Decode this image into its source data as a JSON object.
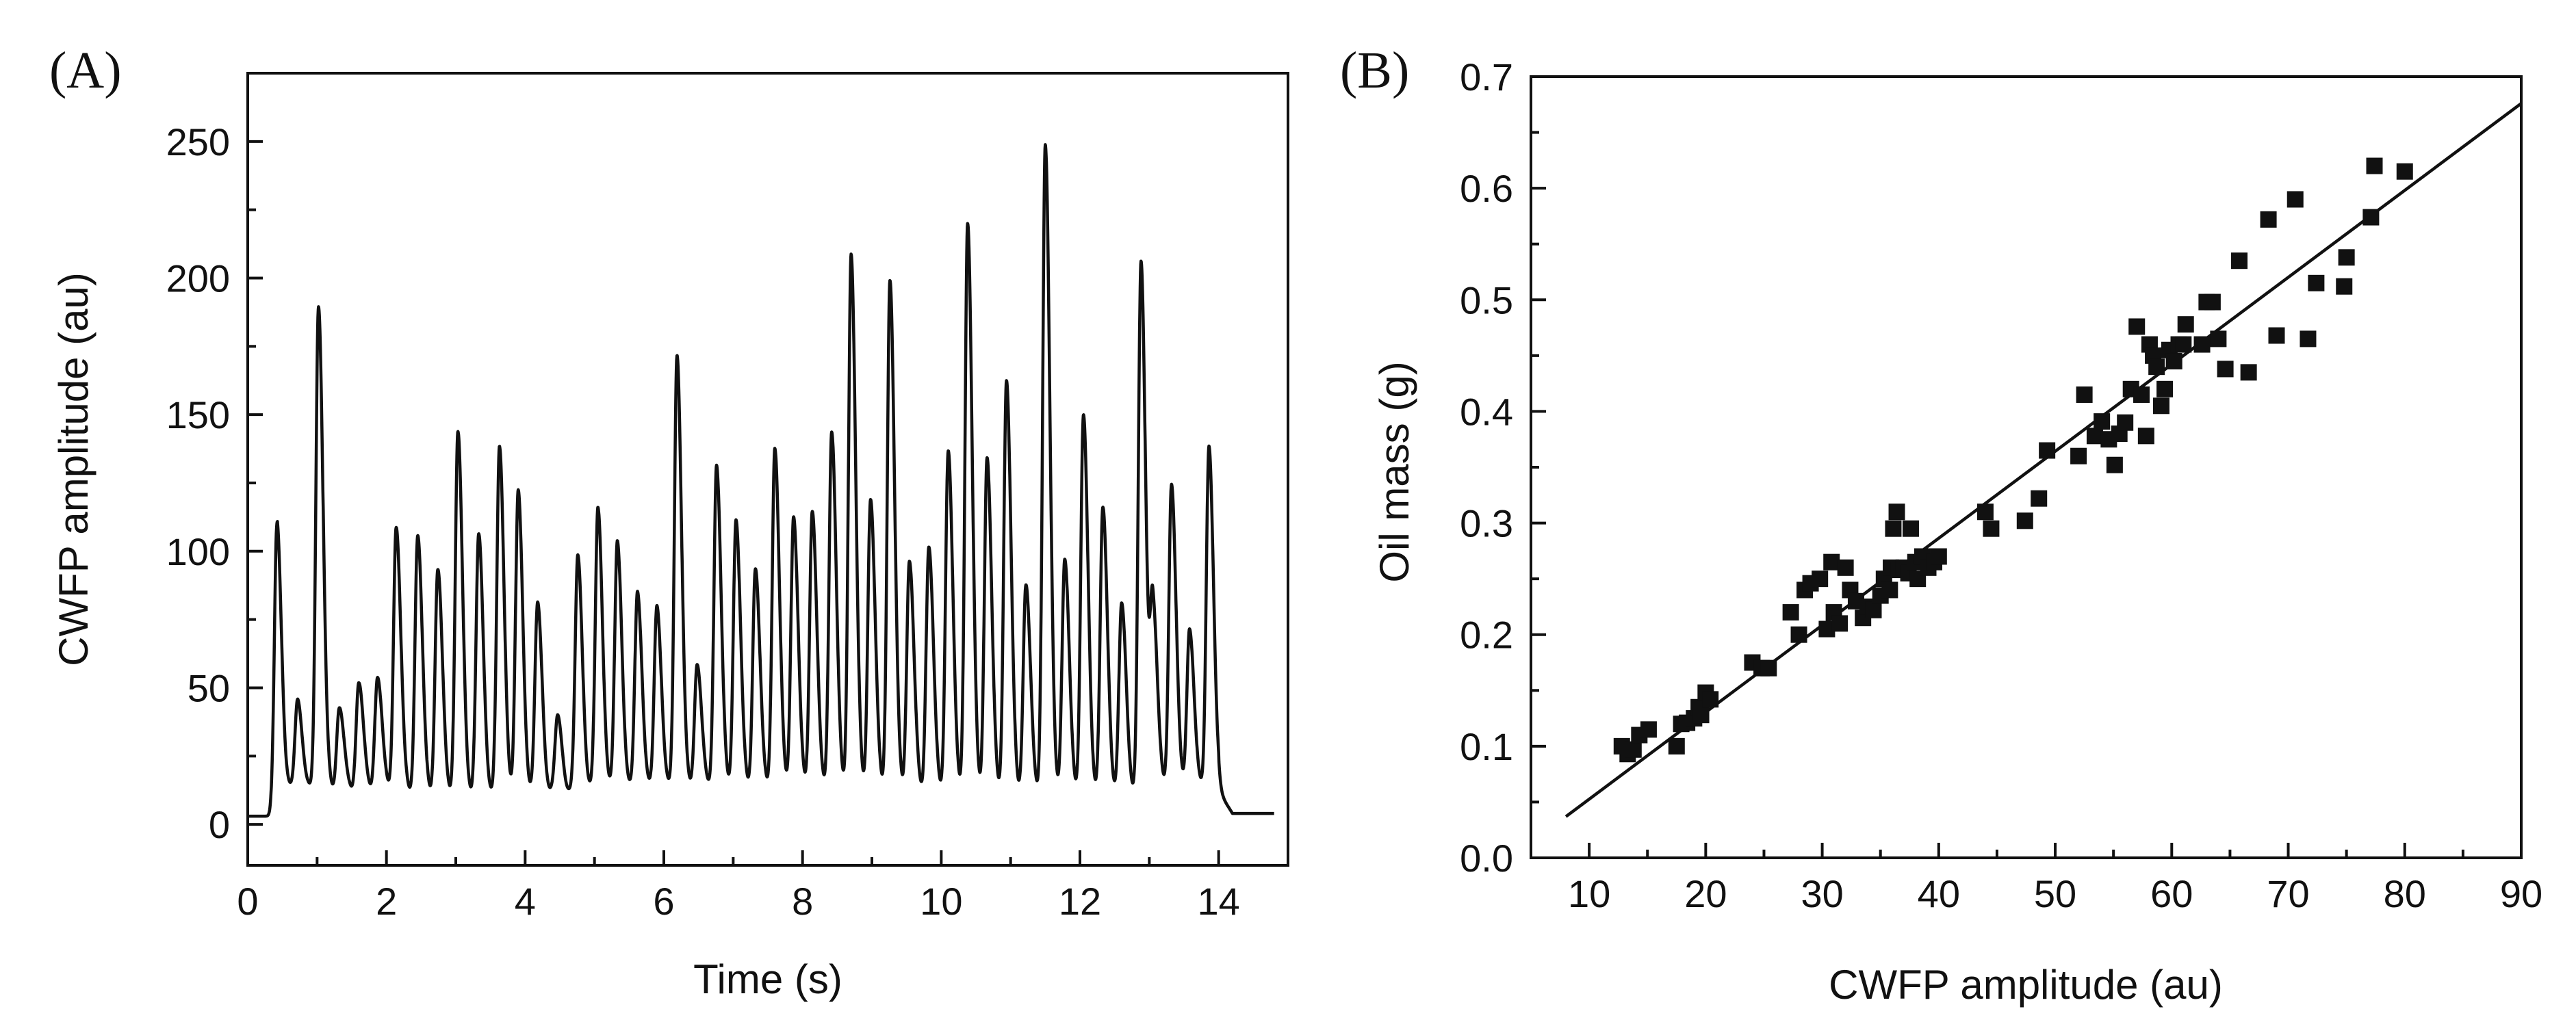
{
  "chart_data": [
    {
      "type": "line",
      "panel_label": "(A)",
      "title": "",
      "xlabel": "Time (s)",
      "ylabel": "CWFP amplitude (au)",
      "xlim": [
        0,
        15
      ],
      "ylim": [
        -15,
        275
      ],
      "xticks": [
        0,
        2,
        4,
        6,
        8,
        10,
        12,
        14
      ],
      "yticks": [
        0,
        50,
        100,
        150,
        200,
        250
      ],
      "baseline_start": 3,
      "baseline_middle": 12,
      "baseline_end": 4,
      "signal_start": 0.38,
      "signal_end": 14.0,
      "peaks": [
        {
          "t": 0.42,
          "a": 112
        },
        {
          "t": 0.72,
          "a": 47
        },
        {
          "t": 1.02,
          "a": 191
        },
        {
          "t": 1.32,
          "a": 44
        },
        {
          "t": 1.6,
          "a": 53
        },
        {
          "t": 1.87,
          "a": 55
        },
        {
          "t": 2.14,
          "a": 110
        },
        {
          "t": 2.45,
          "a": 106
        },
        {
          "t": 2.74,
          "a": 93
        },
        {
          "t": 3.03,
          "a": 143
        },
        {
          "t": 3.33,
          "a": 105
        },
        {
          "t": 3.63,
          "a": 137
        },
        {
          "t": 3.9,
          "a": 121
        },
        {
          "t": 4.18,
          "a": 80
        },
        {
          "t": 4.47,
          "a": 39
        },
        {
          "t": 4.76,
          "a": 98
        },
        {
          "t": 5.05,
          "a": 116
        },
        {
          "t": 5.33,
          "a": 104
        },
        {
          "t": 5.62,
          "a": 86
        },
        {
          "t": 5.9,
          "a": 81
        },
        {
          "t": 6.19,
          "a": 173
        },
        {
          "t": 6.48,
          "a": 60
        },
        {
          "t": 6.76,
          "a": 133
        },
        {
          "t": 7.04,
          "a": 113
        },
        {
          "t": 7.32,
          "a": 95
        },
        {
          "t": 7.6,
          "a": 139
        },
        {
          "t": 7.87,
          "a": 114
        },
        {
          "t": 8.14,
          "a": 116
        },
        {
          "t": 8.42,
          "a": 145
        },
        {
          "t": 8.7,
          "a": 210
        },
        {
          "t": 8.98,
          "a": 120
        },
        {
          "t": 9.26,
          "a": 200
        },
        {
          "t": 9.54,
          "a": 97
        },
        {
          "t": 9.82,
          "a": 102
        },
        {
          "t": 10.1,
          "a": 137
        },
        {
          "t": 10.38,
          "a": 220
        },
        {
          "t": 10.66,
          "a": 134
        },
        {
          "t": 10.94,
          "a": 162
        },
        {
          "t": 11.22,
          "a": 87
        },
        {
          "t": 11.5,
          "a": 248
        },
        {
          "t": 11.78,
          "a": 96
        },
        {
          "t": 12.05,
          "a": 149
        },
        {
          "t": 12.33,
          "a": 115
        },
        {
          "t": 12.6,
          "a": 80
        },
        {
          "t": 12.88,
          "a": 205
        },
        {
          "t": 13.05,
          "a": 82
        },
        {
          "t": 13.32,
          "a": 126
        },
        {
          "t": 13.58,
          "a": 73
        },
        {
          "t": 13.86,
          "a": 140
        }
      ]
    },
    {
      "type": "scatter",
      "panel_label": "(B)",
      "title": "",
      "xlabel": "CWFP amplitude (au)",
      "ylabel": "Oil mass (g)",
      "xlim": [
        5,
        90
      ],
      "ylim": [
        0,
        0.7
      ],
      "xticks": [
        10,
        20,
        30,
        40,
        50,
        60,
        70,
        80,
        90
      ],
      "yticks": [
        "0.0",
        "0.1",
        "0.2",
        "0.3",
        "0.4",
        "0.5",
        "0.6",
        "0.7"
      ],
      "fit_line": {
        "x": [
          8,
          90
        ],
        "y": [
          0.037,
          0.676
        ]
      },
      "points": [
        [
          12.8,
          0.1
        ],
        [
          13.3,
          0.093
        ],
        [
          13.8,
          0.097
        ],
        [
          14.3,
          0.11
        ],
        [
          15.1,
          0.115
        ],
        [
          17.5,
          0.1
        ],
        [
          17.9,
          0.12
        ],
        [
          18.4,
          0.121
        ],
        [
          19.0,
          0.125
        ],
        [
          19.4,
          0.135
        ],
        [
          19.6,
          0.128
        ],
        [
          20.0,
          0.148
        ],
        [
          20.4,
          0.142
        ],
        [
          24.0,
          0.175
        ],
        [
          24.8,
          0.17
        ],
        [
          25.4,
          0.17
        ],
        [
          27.3,
          0.22
        ],
        [
          28.0,
          0.2
        ],
        [
          28.5,
          0.24
        ],
        [
          29.0,
          0.246
        ],
        [
          29.8,
          0.25
        ],
        [
          30.4,
          0.205
        ],
        [
          30.8,
          0.265
        ],
        [
          31.0,
          0.22
        ],
        [
          31.5,
          0.21
        ],
        [
          32.0,
          0.26
        ],
        [
          32.4,
          0.24
        ],
        [
          32.9,
          0.23
        ],
        [
          33.5,
          0.215
        ],
        [
          33.9,
          0.225
        ],
        [
          34.4,
          0.222
        ],
        [
          35.0,
          0.235
        ],
        [
          35.3,
          0.25
        ],
        [
          35.8,
          0.24
        ],
        [
          35.9,
          0.26
        ],
        [
          36.1,
          0.295
        ],
        [
          36.4,
          0.31
        ],
        [
          36.6,
          0.258
        ],
        [
          37.0,
          0.26
        ],
        [
          37.4,
          0.255
        ],
        [
          37.6,
          0.295
        ],
        [
          38.0,
          0.265
        ],
        [
          38.2,
          0.25
        ],
        [
          38.6,
          0.27
        ],
        [
          39.1,
          0.26
        ],
        [
          39.6,
          0.265
        ],
        [
          40.0,
          0.27
        ],
        [
          44.0,
          0.31
        ],
        [
          44.5,
          0.295
        ],
        [
          47.4,
          0.302
        ],
        [
          48.6,
          0.322
        ],
        [
          49.3,
          0.365
        ],
        [
          52.0,
          0.36
        ],
        [
          52.5,
          0.415
        ],
        [
          53.4,
          0.378
        ],
        [
          54.0,
          0.391
        ],
        [
          54.6,
          0.375
        ],
        [
          55.1,
          0.352
        ],
        [
          55.5,
          0.38
        ],
        [
          56.0,
          0.39
        ],
        [
          56.5,
          0.42
        ],
        [
          57.0,
          0.476
        ],
        [
          57.4,
          0.415
        ],
        [
          57.8,
          0.378
        ],
        [
          58.1,
          0.46
        ],
        [
          58.4,
          0.45
        ],
        [
          58.7,
          0.44
        ],
        [
          59.1,
          0.405
        ],
        [
          59.4,
          0.42
        ],
        [
          59.8,
          0.455
        ],
        [
          60.2,
          0.445
        ],
        [
          60.6,
          0.46
        ],
        [
          61.0,
          0.46
        ],
        [
          61.2,
          0.478
        ],
        [
          62.6,
          0.46
        ],
        [
          63.0,
          0.498
        ],
        [
          63.5,
          0.498
        ],
        [
          64.0,
          0.465
        ],
        [
          64.6,
          0.438
        ],
        [
          65.8,
          0.535
        ],
        [
          66.6,
          0.435
        ],
        [
          68.3,
          0.572
        ],
        [
          69.0,
          0.468
        ],
        [
          70.6,
          0.59
        ],
        [
          71.7,
          0.465
        ],
        [
          72.4,
          0.515
        ],
        [
          74.8,
          0.512
        ],
        [
          75.0,
          0.538
        ],
        [
          77.1,
          0.574
        ],
        [
          77.4,
          0.62
        ],
        [
          80.0,
          0.615
        ]
      ]
    }
  ]
}
